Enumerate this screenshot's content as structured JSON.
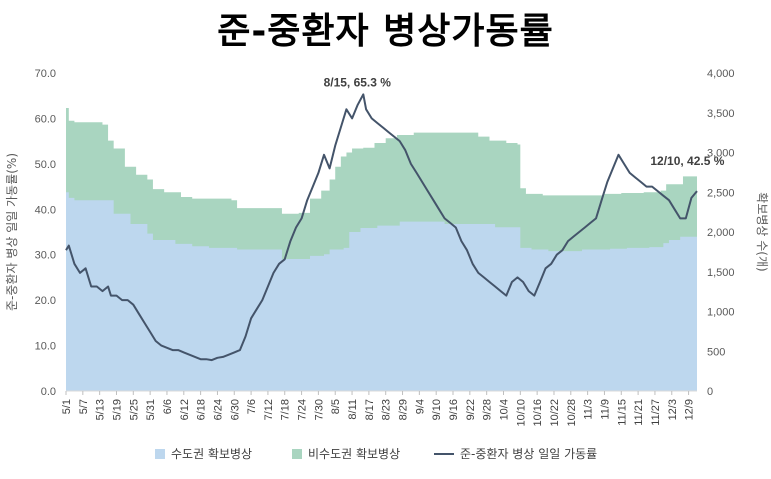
{
  "title": "준-중환자 병상가동률",
  "chart_data": {
    "type": "area+line",
    "title": "준-중환자 병상가동률",
    "ylabel_left": "준-중환자 병상 일일 가동률(%)",
    "ylabel_right": "확보병상 수(개)",
    "ylim_left": [
      0,
      70
    ],
    "ylim_right": [
      0,
      4000
    ],
    "yticks_left": [
      "0.0",
      "10.0",
      "20.0",
      "30.0",
      "40.0",
      "50.0",
      "60.0",
      "70.0"
    ],
    "yticks_right": [
      "0",
      "500",
      "1,000",
      "1,500",
      "2,000",
      "2,500",
      "3,000",
      "3,500",
      "4,000"
    ],
    "x_start": "5/1",
    "x_end": "12/12",
    "x_tick_labels": [
      "5/1",
      "5/7",
      "5/13",
      "5/19",
      "5/25",
      "5/31",
      "6/6",
      "6/12",
      "6/18",
      "6/24",
      "6/30",
      "7/6",
      "7/12",
      "7/18",
      "7/24",
      "7/30",
      "8/5",
      "8/11",
      "8/17",
      "8/23",
      "8/29",
      "9/4",
      "9/10",
      "9/16",
      "9/22",
      "9/28",
      "10/4",
      "10/10",
      "10/16",
      "10/22",
      "10/28",
      "11/3",
      "11/9",
      "11/15",
      "11/21",
      "11/27",
      "12/3",
      "12/9"
    ],
    "legend": [
      "수도권 확보병상",
      "비수도권 확보병상",
      "준-중환자 병상 일일 가동률"
    ],
    "legend_position": "bottom",
    "grid": false,
    "series_metro_beds": {
      "name": "수도권 확보병상",
      "color": "#bdd7ee",
      "points": [
        [
          "5/1",
          2500
        ],
        [
          "5/2",
          2430
        ],
        [
          "5/4",
          2400
        ],
        [
          "5/16",
          2400
        ],
        [
          "5/18",
          2230
        ],
        [
          "5/24",
          2100
        ],
        [
          "5/30",
          1980
        ],
        [
          "6/1",
          1900
        ],
        [
          "6/9",
          1850
        ],
        [
          "6/15",
          1820
        ],
        [
          "6/21",
          1800
        ],
        [
          "6/29",
          1800
        ],
        [
          "7/1",
          1780
        ],
        [
          "7/15",
          1780
        ],
        [
          "7/17",
          1660
        ],
        [
          "7/25",
          1660
        ],
        [
          "7/27",
          1700
        ],
        [
          "8/1",
          1720
        ],
        [
          "8/3",
          1780
        ],
        [
          "8/8",
          1800
        ],
        [
          "8/10",
          2000
        ],
        [
          "8/14",
          2050
        ],
        [
          "8/20",
          2080
        ],
        [
          "8/28",
          2130
        ],
        [
          "9/11",
          2130
        ],
        [
          "9/13",
          2100
        ],
        [
          "9/25",
          2100
        ],
        [
          "10/1",
          2060
        ],
        [
          "10/9",
          2060
        ],
        [
          "10/10",
          1800
        ],
        [
          "10/14",
          1780
        ],
        [
          "10/20",
          1760
        ],
        [
          "10/26",
          1760
        ],
        [
          "11/1",
          1780
        ],
        [
          "11/11",
          1790
        ],
        [
          "11/17",
          1800
        ],
        [
          "11/25",
          1810
        ],
        [
          "11/30",
          1860
        ],
        [
          "12/2",
          1900
        ],
        [
          "12/6",
          1940
        ],
        [
          "12/12",
          1940
        ]
      ]
    },
    "series_total_beds": {
      "name": "비수도권 확보병상",
      "color": "#a9d5c0",
      "points": [
        [
          "5/1",
          3560
        ],
        [
          "5/2",
          3400
        ],
        [
          "5/4",
          3380
        ],
        [
          "5/14",
          3350
        ],
        [
          "5/16",
          3150
        ],
        [
          "5/18",
          3050
        ],
        [
          "5/22",
          2820
        ],
        [
          "5/26",
          2720
        ],
        [
          "5/30",
          2660
        ],
        [
          "6/1",
          2540
        ],
        [
          "6/5",
          2500
        ],
        [
          "6/11",
          2440
        ],
        [
          "6/15",
          2420
        ],
        [
          "6/21",
          2420
        ],
        [
          "6/29",
          2400
        ],
        [
          "7/1",
          2300
        ],
        [
          "7/15",
          2300
        ],
        [
          "7/17",
          2230
        ],
        [
          "7/23",
          2240
        ],
        [
          "7/27",
          2420
        ],
        [
          "7/31",
          2520
        ],
        [
          "8/3",
          2660
        ],
        [
          "8/5",
          2820
        ],
        [
          "8/7",
          2950
        ],
        [
          "8/9",
          3000
        ],
        [
          "8/11",
          3050
        ],
        [
          "8/15",
          3060
        ],
        [
          "8/19",
          3120
        ],
        [
          "8/23",
          3180
        ],
        [
          "8/27",
          3220
        ],
        [
          "9/2",
          3250
        ],
        [
          "9/16",
          3250
        ],
        [
          "9/25",
          3200
        ],
        [
          "9/29",
          3150
        ],
        [
          "10/5",
          3120
        ],
        [
          "10/9",
          3100
        ],
        [
          "10/10",
          2550
        ],
        [
          "10/12",
          2480
        ],
        [
          "10/18",
          2460
        ],
        [
          "10/26",
          2460
        ],
        [
          "11/1",
          2460
        ],
        [
          "11/9",
          2480
        ],
        [
          "11/15",
          2490
        ],
        [
          "11/23",
          2500
        ],
        [
          "11/29",
          2520
        ],
        [
          "12/1",
          2600
        ],
        [
          "12/7",
          2700
        ],
        [
          "12/12",
          2740
        ]
      ]
    },
    "series_occupancy": {
      "name": "준-중환자 병상 일일 가동률",
      "color": "#44546a",
      "points": [
        [
          "5/1",
          31
        ],
        [
          "5/2",
          32
        ],
        [
          "5/4",
          28
        ],
        [
          "5/6",
          26
        ],
        [
          "5/8",
          27
        ],
        [
          "5/9",
          25
        ],
        [
          "5/10",
          23
        ],
        [
          "5/12",
          23
        ],
        [
          "5/14",
          22
        ],
        [
          "5/16",
          23
        ],
        [
          "5/17",
          21
        ],
        [
          "5/19",
          21
        ],
        [
          "5/21",
          20
        ],
        [
          "5/23",
          20
        ],
        [
          "5/25",
          19
        ],
        [
          "5/27",
          17
        ],
        [
          "5/29",
          15
        ],
        [
          "5/31",
          13
        ],
        [
          "6/2",
          11
        ],
        [
          "6/4",
          10
        ],
        [
          "6/6",
          9.5
        ],
        [
          "6/8",
          9
        ],
        [
          "6/10",
          9
        ],
        [
          "6/12",
          8.5
        ],
        [
          "6/14",
          8
        ],
        [
          "6/16",
          7.5
        ],
        [
          "6/18",
          7
        ],
        [
          "6/20",
          7
        ],
        [
          "6/22",
          6.8
        ],
        [
          "6/24",
          7.3
        ],
        [
          "6/26",
          7.5
        ],
        [
          "6/28",
          8
        ],
        [
          "6/30",
          8.5
        ],
        [
          "7/2",
          9
        ],
        [
          "7/4",
          12
        ],
        [
          "7/6",
          16
        ],
        [
          "7/8",
          18
        ],
        [
          "7/10",
          20
        ],
        [
          "7/12",
          23
        ],
        [
          "7/14",
          26
        ],
        [
          "7/16",
          28
        ],
        [
          "7/18",
          29
        ],
        [
          "7/20",
          33
        ],
        [
          "7/22",
          36
        ],
        [
          "7/24",
          38
        ],
        [
          "7/26",
          42
        ],
        [
          "7/28",
          45
        ],
        [
          "7/30",
          48
        ],
        [
          "8/1",
          52
        ],
        [
          "8/3",
          49
        ],
        [
          "8/5",
          54
        ],
        [
          "8/7",
          58
        ],
        [
          "8/9",
          62
        ],
        [
          "8/11",
          60
        ],
        [
          "8/13",
          63
        ],
        [
          "8/15",
          65.3
        ],
        [
          "8/16",
          62
        ],
        [
          "8/18",
          60
        ],
        [
          "8/20",
          59
        ],
        [
          "8/22",
          58
        ],
        [
          "8/24",
          57
        ],
        [
          "8/26",
          56
        ],
        [
          "8/28",
          55
        ],
        [
          "8/30",
          53
        ],
        [
          "9/1",
          50
        ],
        [
          "9/3",
          48
        ],
        [
          "9/5",
          46
        ],
        [
          "9/7",
          44
        ],
        [
          "9/9",
          42
        ],
        [
          "9/11",
          40
        ],
        [
          "9/13",
          38
        ],
        [
          "9/15",
          37
        ],
        [
          "9/17",
          36
        ],
        [
          "9/19",
          33
        ],
        [
          "9/21",
          31
        ],
        [
          "9/23",
          28
        ],
        [
          "9/25",
          26
        ],
        [
          "9/27",
          25
        ],
        [
          "9/29",
          24
        ],
        [
          "10/1",
          23
        ],
        [
          "10/3",
          22
        ],
        [
          "10/5",
          21
        ],
        [
          "10/7",
          24
        ],
        [
          "10/9",
          25
        ],
        [
          "10/11",
          24
        ],
        [
          "10/13",
          22
        ],
        [
          "10/15",
          21
        ],
        [
          "10/17",
          24
        ],
        [
          "10/19",
          27
        ],
        [
          "10/21",
          28
        ],
        [
          "10/23",
          30
        ],
        [
          "10/25",
          31
        ],
        [
          "10/27",
          33
        ],
        [
          "10/29",
          34
        ],
        [
          "10/31",
          35
        ],
        [
          "11/2",
          36
        ],
        [
          "11/4",
          37
        ],
        [
          "11/6",
          38
        ],
        [
          "11/8",
          42
        ],
        [
          "11/10",
          46
        ],
        [
          "11/12",
          49
        ],
        [
          "11/14",
          52
        ],
        [
          "11/16",
          50
        ],
        [
          "11/18",
          48
        ],
        [
          "11/20",
          47
        ],
        [
          "11/22",
          46
        ],
        [
          "11/24",
          45
        ],
        [
          "11/26",
          45
        ],
        [
          "11/28",
          44
        ],
        [
          "11/30",
          43
        ],
        [
          "12/2",
          42
        ],
        [
          "12/4",
          40
        ],
        [
          "12/6",
          38
        ],
        [
          "12/8",
          38
        ],
        [
          "12/10",
          42.5
        ],
        [
          "12/12",
          44
        ]
      ]
    },
    "annotations": [
      {
        "label": "8/15, 65.3 %",
        "x": "8/15",
        "y": 65.3
      },
      {
        "label": "12/10, 42.5 %",
        "x": "12/10",
        "y": 42.5
      }
    ]
  }
}
